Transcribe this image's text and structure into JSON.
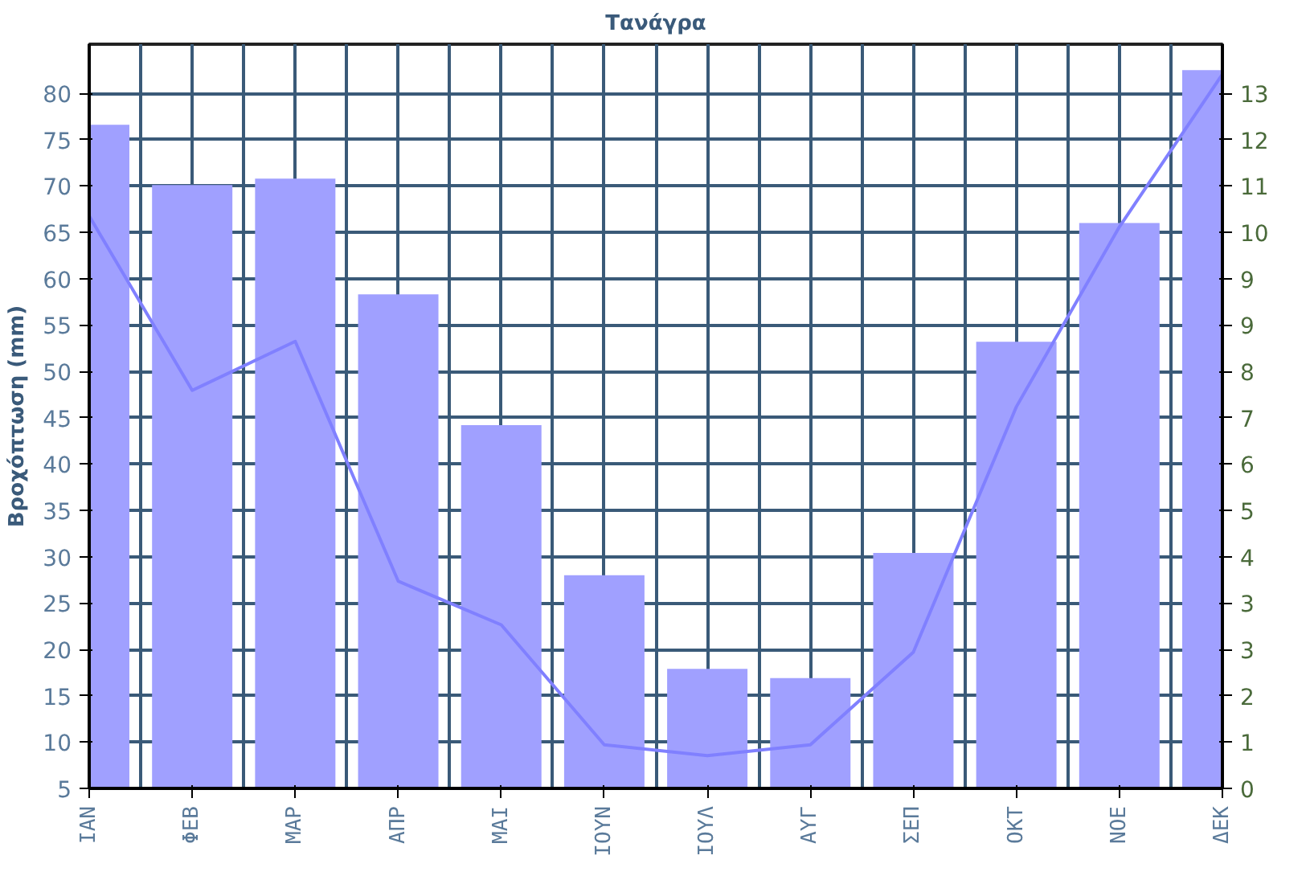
{
  "chart_data": {
    "type": "bar",
    "title": "Τανάγρα",
    "ylabel": "Βροχόπτωση (mm)",
    "categories": [
      "ΙΑΝ",
      "ΦΕΒ",
      "ΜΑΡ",
      "ΑΠΡ",
      "ΜΑΙ",
      "ΙΟΥΝ",
      "ΙΟΥΛ",
      "ΑΥΓ",
      "ΣΕΠ",
      "ΟΚΤ",
      "ΝΟΕ",
      "ΔΕΚ"
    ],
    "series": [
      {
        "color": "#a0a0ff",
        "values": [
          76.6,
          70.1,
          70.8,
          58.3,
          44.2,
          28.0,
          17.9,
          16.9,
          30.4,
          53.2,
          66.0,
          82.5
        ]
      },
      {
        "type": "line",
        "axis": "y2",
        "color": "#8080ff",
        "values": [
          10.5,
          7.3,
          8.2,
          3.8,
          3.0,
          0.8,
          0.6,
          0.8,
          2.5,
          7.0,
          10.3,
          13.1
        ]
      }
    ],
    "ylim": [
      5,
      85.3
    ],
    "yticks": [
      5,
      10,
      15,
      20,
      25,
      30,
      35,
      40,
      45,
      50,
      55,
      60,
      65,
      70,
      75,
      80
    ],
    "y2lim": [
      0,
      13.65
    ],
    "y2ticks": [
      0,
      {
        "value": 0.85,
        "label": "1"
      },
      {
        "value": 1.7,
        "label": "2"
      },
      {
        "value": 2.55,
        "label": "3"
      },
      {
        "value": 3.4,
        "label": "3"
      },
      {
        "value": 4.25,
        "label": "4"
      },
      {
        "value": 5.1,
        "label": "5"
      },
      {
        "value": 5.95,
        "label": "6"
      },
      {
        "value": 6.8,
        "label": "7"
      },
      {
        "value": 7.65,
        "label": "8"
      },
      {
        "value": 8.5,
        "label": "9"
      },
      {
        "value": 9.35,
        "label": "9"
      },
      {
        "value": 10.2,
        "label": "10"
      },
      {
        "value": 11.05,
        "label": "11"
      },
      {
        "value": 11.9,
        "label": "12"
      },
      {
        "value": 12.75,
        "label": "13"
      }
    ],
    "grid": true
  }
}
